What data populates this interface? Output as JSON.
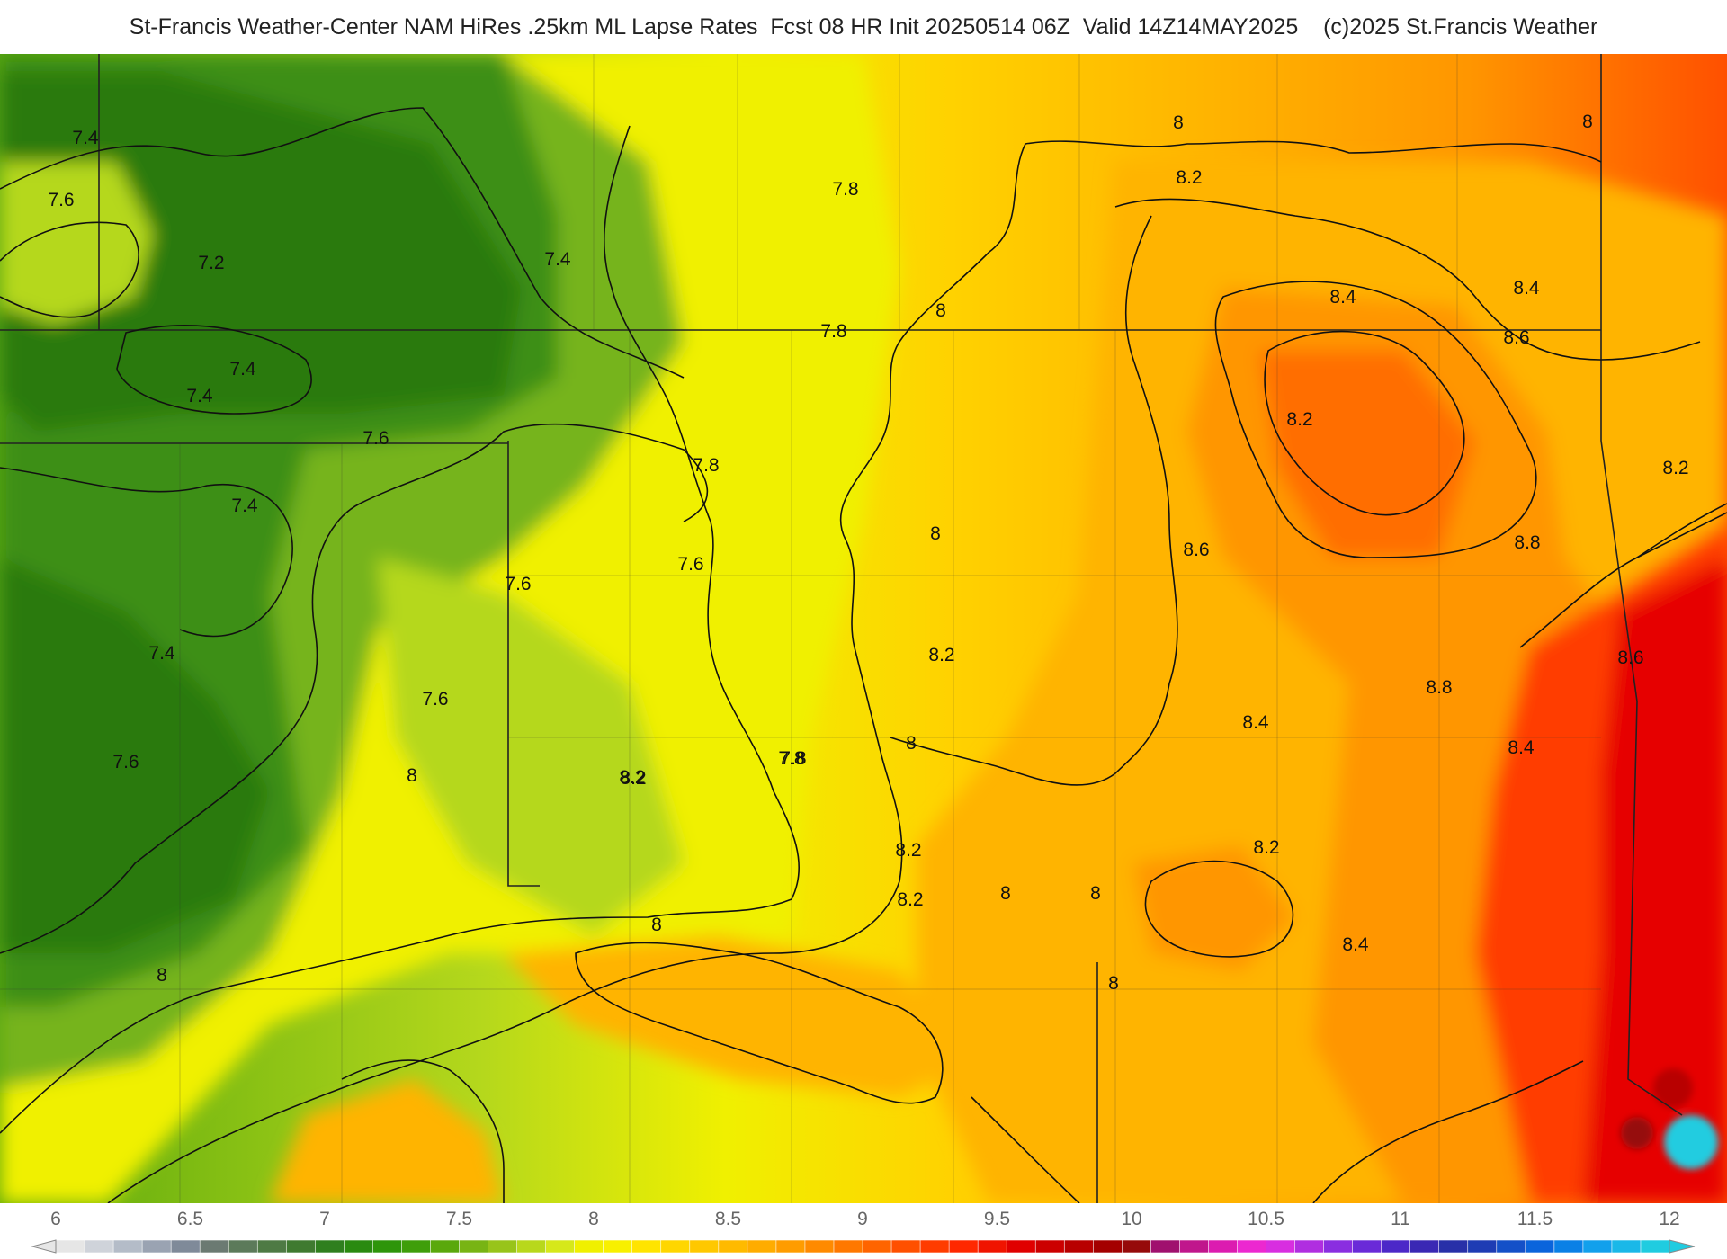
{
  "title": "St-Francis Weather-Center NAM HiRes .25km ML Lapse Rates  Fcst 08 HR Init 20250514 06Z  Valid 14Z14MAY2025    (c)2025 St.Francis Weather",
  "colors": {
    "c60": "#2c7a0e",
    "c70": "#3e8f14",
    "c74": "#76b41c",
    "c76": "#b5d81c",
    "c78": "#f0f000",
    "c80": "#ffd200",
    "c82": "#ffb400",
    "c84": "#ff9600",
    "c86": "#ff6e00",
    "c88": "#ff3c00",
    "c90": "#e60000"
  },
  "contour_labels": [
    {
      "text": "7.4"
    },
    {
      "text": "7.6"
    },
    {
      "text": "7.2"
    },
    {
      "text": "7.4"
    },
    {
      "text": "7.4"
    },
    {
      "text": "7.4"
    },
    {
      "text": "7.6"
    },
    {
      "text": "7.6"
    },
    {
      "text": "7.4"
    },
    {
      "text": "7.6"
    },
    {
      "text": "7.4"
    },
    {
      "text": "7.6"
    },
    {
      "text": "7.6"
    },
    {
      "text": "7.8"
    },
    {
      "text": "7.8"
    },
    {
      "text": "7.8"
    },
    {
      "text": "7.8"
    },
    {
      "text": "8"
    },
    {
      "text": "8"
    },
    {
      "text": "8"
    },
    {
      "text": "8"
    },
    {
      "text": "8.2"
    },
    {
      "text": "8.2"
    },
    {
      "text": "8.2"
    },
    {
      "text": "8.4"
    },
    {
      "text": "8.6"
    },
    {
      "text": "8.4"
    },
    {
      "text": "8.2"
    },
    {
      "text": "8.8"
    },
    {
      "text": "8.6"
    },
    {
      "text": "8.8"
    },
    {
      "text": "8.4"
    },
    {
      "text": "8.6"
    },
    {
      "text": "8.2"
    },
    {
      "text": "8"
    },
    {
      "text": "8"
    },
    {
      "text": "8.2"
    },
    {
      "text": "8.2"
    },
    {
      "text": "8.4"
    },
    {
      "text": "8"
    },
    {
      "text": "8"
    },
    {
      "text": "8"
    },
    {
      "text": "8.4"
    },
    {
      "text": "8"
    },
    {
      "text": "7.8"
    },
    {
      "text": "8.2"
    },
    {
      "text": "8"
    },
    {
      "text": "8.2"
    }
  ],
  "colorbar": {
    "ticks": [
      "6",
      "6.5",
      "7",
      "7.5",
      "8",
      "8.5",
      "9",
      "9.5",
      "10",
      "10.5",
      "11",
      "11.5",
      "12"
    ],
    "min": 6,
    "max": 12,
    "swatches": [
      "#e6e6e6",
      "#cfd3da",
      "#b4bcc8",
      "#9aa3b2",
      "#7f8a99",
      "#6b7a72",
      "#5c7a5a",
      "#4e7a44",
      "#3f7a30",
      "#2f7f1e",
      "#2a8a10",
      "#2e950a",
      "#3f9e0a",
      "#5aa80c",
      "#78b414",
      "#98c41a",
      "#b8d81c",
      "#d6e81a",
      "#f0f000",
      "#f8f000",
      "#ffe400",
      "#ffd600",
      "#ffc800",
      "#ffba00",
      "#ffac00",
      "#ff9c00",
      "#ff8a00",
      "#ff7800",
      "#ff6400",
      "#ff5000",
      "#ff3c00",
      "#ff2800",
      "#f01400",
      "#e00000",
      "#cc0000",
      "#b80000",
      "#a40000",
      "#960a0a",
      "#a0106e",
      "#c0168c",
      "#dc1cb0",
      "#ec28d0",
      "#d82ee0",
      "#b02ee0",
      "#8a2ee0",
      "#6a2ad8",
      "#4c28c8",
      "#3a28b4",
      "#2830a8",
      "#1e3cb4",
      "#1450c8",
      "#0a64dc",
      "#0a80e6",
      "#12a0ec",
      "#1ab8e8",
      "#20cce0"
    ]
  }
}
